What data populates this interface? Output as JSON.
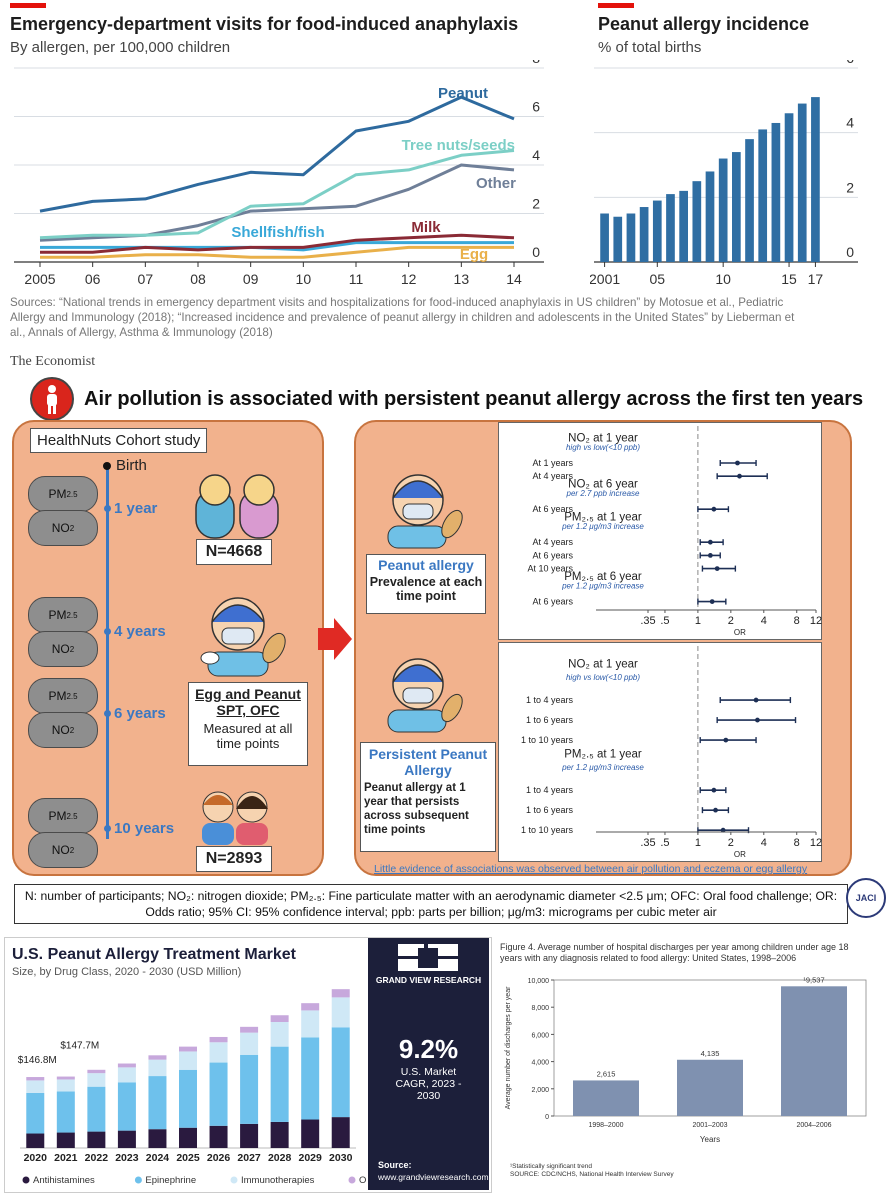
{
  "economist": {
    "left_title": "Emergency-department visits for food-induced anaphylaxis",
    "left_subtitle": "By allergen, per 100,000 children",
    "right_title": "Peanut allergy incidence",
    "right_subtitle": "% of total births",
    "sources": "Sources: “National trends in emergency department visits and hospitalizations for food-induced anaphylaxis in US children” by Motosue et al., Pediatric Allergy and Immunology (2018); “Increased incidence and prevalence of peanut allergy in children and adolescents in the United States” by Lieberman et al., Annals of Allergy, Asthma & Immunology (2018)",
    "brand": "The Economist"
  },
  "infographic": {
    "title": "Air pollution is associated with persistent peanut allergy across the first ten years",
    "cohort_label": "HealthNuts Cohort study",
    "birth": "Birth",
    "timepoints": [
      "1 year",
      "4 years",
      "6 years",
      "10 years"
    ],
    "pm": "PM",
    "pm_sub": "2.5",
    "no": "NO",
    "no_sub": "2",
    "n1": "N=4668",
    "n2": "N=2893",
    "spt_title": "Egg and Peanut SPT, OFC",
    "spt_body": "Measured at all time points",
    "pa_title": "Peanut allergy",
    "pa_body": "Prevalence at each time point",
    "ppa_title": "Persistent Peanut Allergy",
    "ppa_body": "Peanut allergy at 1 year that persists across subsequent time points",
    "note": "Little evidence of associations was observed between air pollution and eczema or egg allergy",
    "footnote": "N: number of participants; NO₂: nitrogen dioxide; PM₂.₅: Fine particulate matter with an aerodynamic diameter <2.5 μm; OFC: Oral food challenge; OR: Odds ratio; 95% CI: 95% confidence interval; ppb: parts per billion; μg/m3: micrograms per cubic meter air",
    "jaci": "JACI"
  },
  "grandview": {
    "title": "U.S. Peanut Allergy Treatment Market",
    "subtitle": "Size, by Drug Class, 2020 - 2030 (USD Million)",
    "brand": "GRAND VIEW RESEARCH",
    "cagr_value": "9.2%",
    "cagr_label": "U.S. Market CAGR, 2023 - 2030",
    "source_label": "Source:",
    "source_url": "www.grandviewresearch.com"
  },
  "cdc": {
    "caption": "Figure 4. Average number of hospital discharges per year among children under age 18 years with any diagnosis related to food allergy: United States, 1998–2006",
    "footnote1": "¹Statistically significant trend",
    "footnote2": "SOURCE: CDC/NCHS, National Health Interview Survey"
  },
  "chart_data": [
    {
      "type": "line",
      "title": "Emergency-department visits for food-induced anaphylaxis",
      "x": [
        2005,
        2006,
        2007,
        2008,
        2009,
        2010,
        2011,
        2012,
        2013,
        2014
      ],
      "x_tick_labels": [
        "2005",
        "06",
        "07",
        "08",
        "09",
        "10",
        "11",
        "12",
        "13",
        "14"
      ],
      "ylim": [
        0,
        8
      ],
      "y_ticks": [
        0,
        2,
        4,
        6,
        8
      ],
      "series": [
        {
          "name": "Peanut",
          "color": "#2e6a9e",
          "values": [
            2.1,
            2.5,
            2.6,
            3.2,
            3.7,
            3.6,
            5.4,
            5.8,
            6.8,
            5.9
          ]
        },
        {
          "name": "Tree nuts/seeds",
          "color": "#7ccfc6",
          "values": [
            1.0,
            1.1,
            1.1,
            1.2,
            2.3,
            2.4,
            3.6,
            3.8,
            4.4,
            4.6
          ]
        },
        {
          "name": "Other",
          "color": "#6f7f98",
          "values": [
            0.9,
            1.0,
            1.1,
            1.5,
            2.1,
            2.2,
            2.3,
            3.0,
            4.0,
            3.8
          ]
        },
        {
          "name": "Milk",
          "color": "#8a2a35",
          "values": [
            0.4,
            0.4,
            0.6,
            0.5,
            0.6,
            0.6,
            0.9,
            1.0,
            1.1,
            1.0
          ]
        },
        {
          "name": "Shellfish/fish",
          "color": "#39a8d8",
          "values": [
            0.6,
            0.6,
            0.6,
            0.6,
            0.6,
            0.5,
            0.8,
            0.8,
            0.8,
            0.8
          ]
        },
        {
          "name": "Egg",
          "color": "#e9b04a",
          "values": [
            0.2,
            0.2,
            0.3,
            0.3,
            0.2,
            0.2,
            0.4,
            0.6,
            0.6,
            0.6
          ]
        }
      ]
    },
    {
      "type": "bar",
      "title": "Peanut allergy incidence",
      "categories": [
        2001,
        2002,
        2003,
        2004,
        2005,
        2006,
        2007,
        2008,
        2009,
        2010,
        2011,
        2012,
        2013,
        2014,
        2015,
        2016,
        2017
      ],
      "x_tick_labels": {
        "2001": "2001",
        "2005": "05",
        "2010": "10",
        "2015": "15",
        "2017": "17"
      },
      "values": [
        1.5,
        1.4,
        1.5,
        1.7,
        1.9,
        2.1,
        2.2,
        2.5,
        2.8,
        3.2,
        3.4,
        3.8,
        4.1,
        4.3,
        4.6,
        4.9,
        5.1
      ],
      "ylim": [
        0,
        6
      ],
      "y_ticks": [
        0,
        2,
        4,
        6
      ]
    },
    {
      "type": "scatter",
      "title": "Peanut allergy — forest plot",
      "xlabel": "OR",
      "x_ticks": [
        0.35,
        0.5,
        1,
        2,
        4,
        8,
        12
      ],
      "x_tick_labels": [
        ".35",
        ".5",
        "1",
        "2",
        "4",
        "8",
        "12"
      ],
      "groups": [
        {
          "label": "NO₂ at 1 year",
          "sub": "high vs low(<10 ppb)",
          "rows": [
            {
              "label": "At 1 years",
              "or": 2.3,
              "lo": 1.6,
              "hi": 3.4
            },
            {
              "label": "At 4 years",
              "or": 2.4,
              "lo": 1.5,
              "hi": 4.3
            }
          ]
        },
        {
          "label": "NO₂ at 6 year",
          "sub": "per 2.7 ppb increase",
          "rows": [
            {
              "label": "At 6 years",
              "or": 1.4,
              "lo": 1.0,
              "hi": 1.9
            }
          ]
        },
        {
          "label": "PM₂.₅ at 1 year",
          "sub": "per 1.2 μg/m3 increase",
          "rows": [
            {
              "label": "At 4 years",
              "or": 1.3,
              "lo": 1.05,
              "hi": 1.7
            },
            {
              "label": "At 6 years",
              "or": 1.3,
              "lo": 1.05,
              "hi": 1.6
            },
            {
              "label": "At 10 years",
              "or": 1.5,
              "lo": 1.1,
              "hi": 2.2
            }
          ]
        },
        {
          "label": "PM₂.₅ at 6 year",
          "sub": "per 1.2 μg/m3 increase",
          "rows": [
            {
              "label": "At 6 years",
              "or": 1.35,
              "lo": 1.0,
              "hi": 1.8
            }
          ]
        }
      ]
    },
    {
      "type": "scatter",
      "title": "Persistent peanut allergy — forest plot",
      "xlabel": "OR",
      "x_ticks": [
        0.35,
        0.5,
        1,
        2,
        4,
        8,
        12
      ],
      "x_tick_labels": [
        ".35",
        ".5",
        "1",
        "2",
        "4",
        "8",
        "12"
      ],
      "groups": [
        {
          "label": "NO₂ at 1 year",
          "sub": "high vs low(<10 ppb)",
          "rows": [
            {
              "label": "1 to 4 years",
              "or": 3.4,
              "lo": 1.6,
              "hi": 7.0
            },
            {
              "label": "1 to 6 years",
              "or": 3.5,
              "lo": 1.5,
              "hi": 7.8
            },
            {
              "label": "1 to 10 years",
              "or": 1.8,
              "lo": 1.05,
              "hi": 3.4
            }
          ]
        },
        {
          "label": "PM₂.₅ at 1 year",
          "sub": "per 1.2 μg/m3 increase",
          "rows": [
            {
              "label": "1 to 4 years",
              "or": 1.4,
              "lo": 1.05,
              "hi": 1.8
            },
            {
              "label": "1 to 6 years",
              "or": 1.45,
              "lo": 1.1,
              "hi": 1.9
            },
            {
              "label": "1 to 10 years",
              "or": 1.7,
              "lo": 1.0,
              "hi": 2.9
            }
          ]
        }
      ]
    },
    {
      "type": "bar",
      "title": "U.S. Peanut Allergy Treatment Market",
      "categories": [
        "2020",
        "2021",
        "2022",
        "2023",
        "2024",
        "2025",
        "2026",
        "2027",
        "2028",
        "2029",
        "2030"
      ],
      "series": [
        {
          "name": "Antihistamines",
          "color": "#2a1a3f",
          "values": [
            30,
            32,
            34,
            36,
            39,
            42,
            46,
            50,
            54,
            59,
            64
          ]
        },
        {
          "name": "Epinephrine",
          "color": "#6ec1ec",
          "values": [
            84,
            85,
            93,
            100,
            110,
            120,
            131,
            143,
            156,
            170,
            186
          ]
        },
        {
          "name": "Immunotherapies",
          "color": "#cfe8f6",
          "values": [
            26,
            25,
            28,
            31,
            34,
            38,
            42,
            46,
            51,
            56,
            62
          ]
        },
        {
          "name": "Others",
          "color": "#c7a8dc",
          "values": [
            7,
            6,
            7,
            8,
            9,
            10,
            11,
            12,
            14,
            15,
            17
          ]
        }
      ],
      "annotations": [
        {
          "category": "2020",
          "text": "$146.8M"
        },
        {
          "category": "2021",
          "text": "$147.7M"
        }
      ]
    },
    {
      "type": "bar",
      "title": "Figure 4. Average number of hospital discharges per year among children under age 18 years with any diagnosis related to food allergy: United States, 1998–2006",
      "categories": [
        "1998–2000",
        "2001–2003",
        "2004–2006"
      ],
      "values": [
        2615,
        4135,
        9537
      ],
      "value_labels": [
        "2,615",
        "4,135",
        "¹9,537"
      ],
      "xlabel": "Years",
      "ylabel": "Average number of discharges per year",
      "ylim": [
        0,
        10000
      ],
      "y_ticks": [
        0,
        2000,
        4000,
        6000,
        8000,
        10000
      ],
      "y_tick_labels": [
        "0",
        "2,000",
        "4,000",
        "6,000",
        "8,000",
        "10,000"
      ],
      "color": "#7f91b0"
    }
  ]
}
